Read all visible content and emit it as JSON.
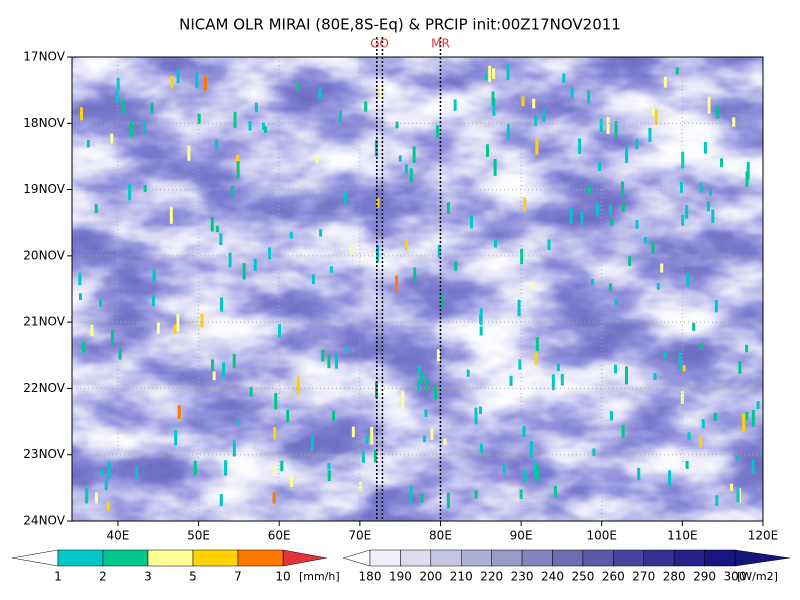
{
  "chart_data": {
    "type": "hovmoller",
    "title": "NICAM OLR MIRAI (80E,8S-Eq) & PRCIP init:00Z17NOV2011",
    "xlim": [
      34.3,
      120
    ],
    "xticks": [
      {
        "value": 40,
        "label": "40E"
      },
      {
        "value": 50,
        "label": "50E"
      },
      {
        "value": 60,
        "label": "60E"
      },
      {
        "value": 70,
        "label": "70E"
      },
      {
        "value": 80,
        "label": "80E"
      },
      {
        "value": 90,
        "label": "90E"
      },
      {
        "value": 100,
        "label": "100E"
      },
      {
        "value": 110,
        "label": "110E"
      },
      {
        "value": 120,
        "label": "120E"
      }
    ],
    "ylim": [
      0,
      7
    ],
    "yticks": [
      {
        "value": 0,
        "label": "17NOV"
      },
      {
        "value": 1,
        "label": "18NOV"
      },
      {
        "value": 2,
        "label": "19NOV"
      },
      {
        "value": 3,
        "label": "20NOV"
      },
      {
        "value": 4,
        "label": "21NOV"
      },
      {
        "value": 5,
        "label": "22NOV"
      },
      {
        "value": 6,
        "label": "23NOV"
      },
      {
        "value": 7,
        "label": "24NOV"
      }
    ],
    "grid": true,
    "markers": [
      {
        "label": "GO",
        "x": [
          72.1,
          72.8
        ],
        "color": "#e0303a"
      },
      {
        "label": "MR",
        "x": [
          80
        ],
        "color": "#e0303a"
      }
    ],
    "colorbars": [
      {
        "levels": [
          1,
          2,
          3,
          5,
          7,
          10
        ],
        "unit": "[mm/h]",
        "under": "#ffffff",
        "over": "#e6323c",
        "colors": [
          "#00c8c8",
          "#00c88c",
          "#ffff96",
          "#ffd200",
          "#ff7800"
        ]
      },
      {
        "levels": [
          180,
          190,
          200,
          210,
          220,
          230,
          240,
          250,
          260,
          270,
          280,
          290,
          300
        ],
        "unit": "[W/m2]",
        "under": "#ffffff",
        "over": "#14147a",
        "colors": [
          "#f0f0f8",
          "#dcdcee",
          "#c6c6e2",
          "#b0b0d6",
          "#9a9aca",
          "#8484be",
          "#6e6eb2",
          "#5a5aa8",
          "#46469e",
          "#323292",
          "#222288",
          "#161680"
        ]
      }
    ]
  }
}
